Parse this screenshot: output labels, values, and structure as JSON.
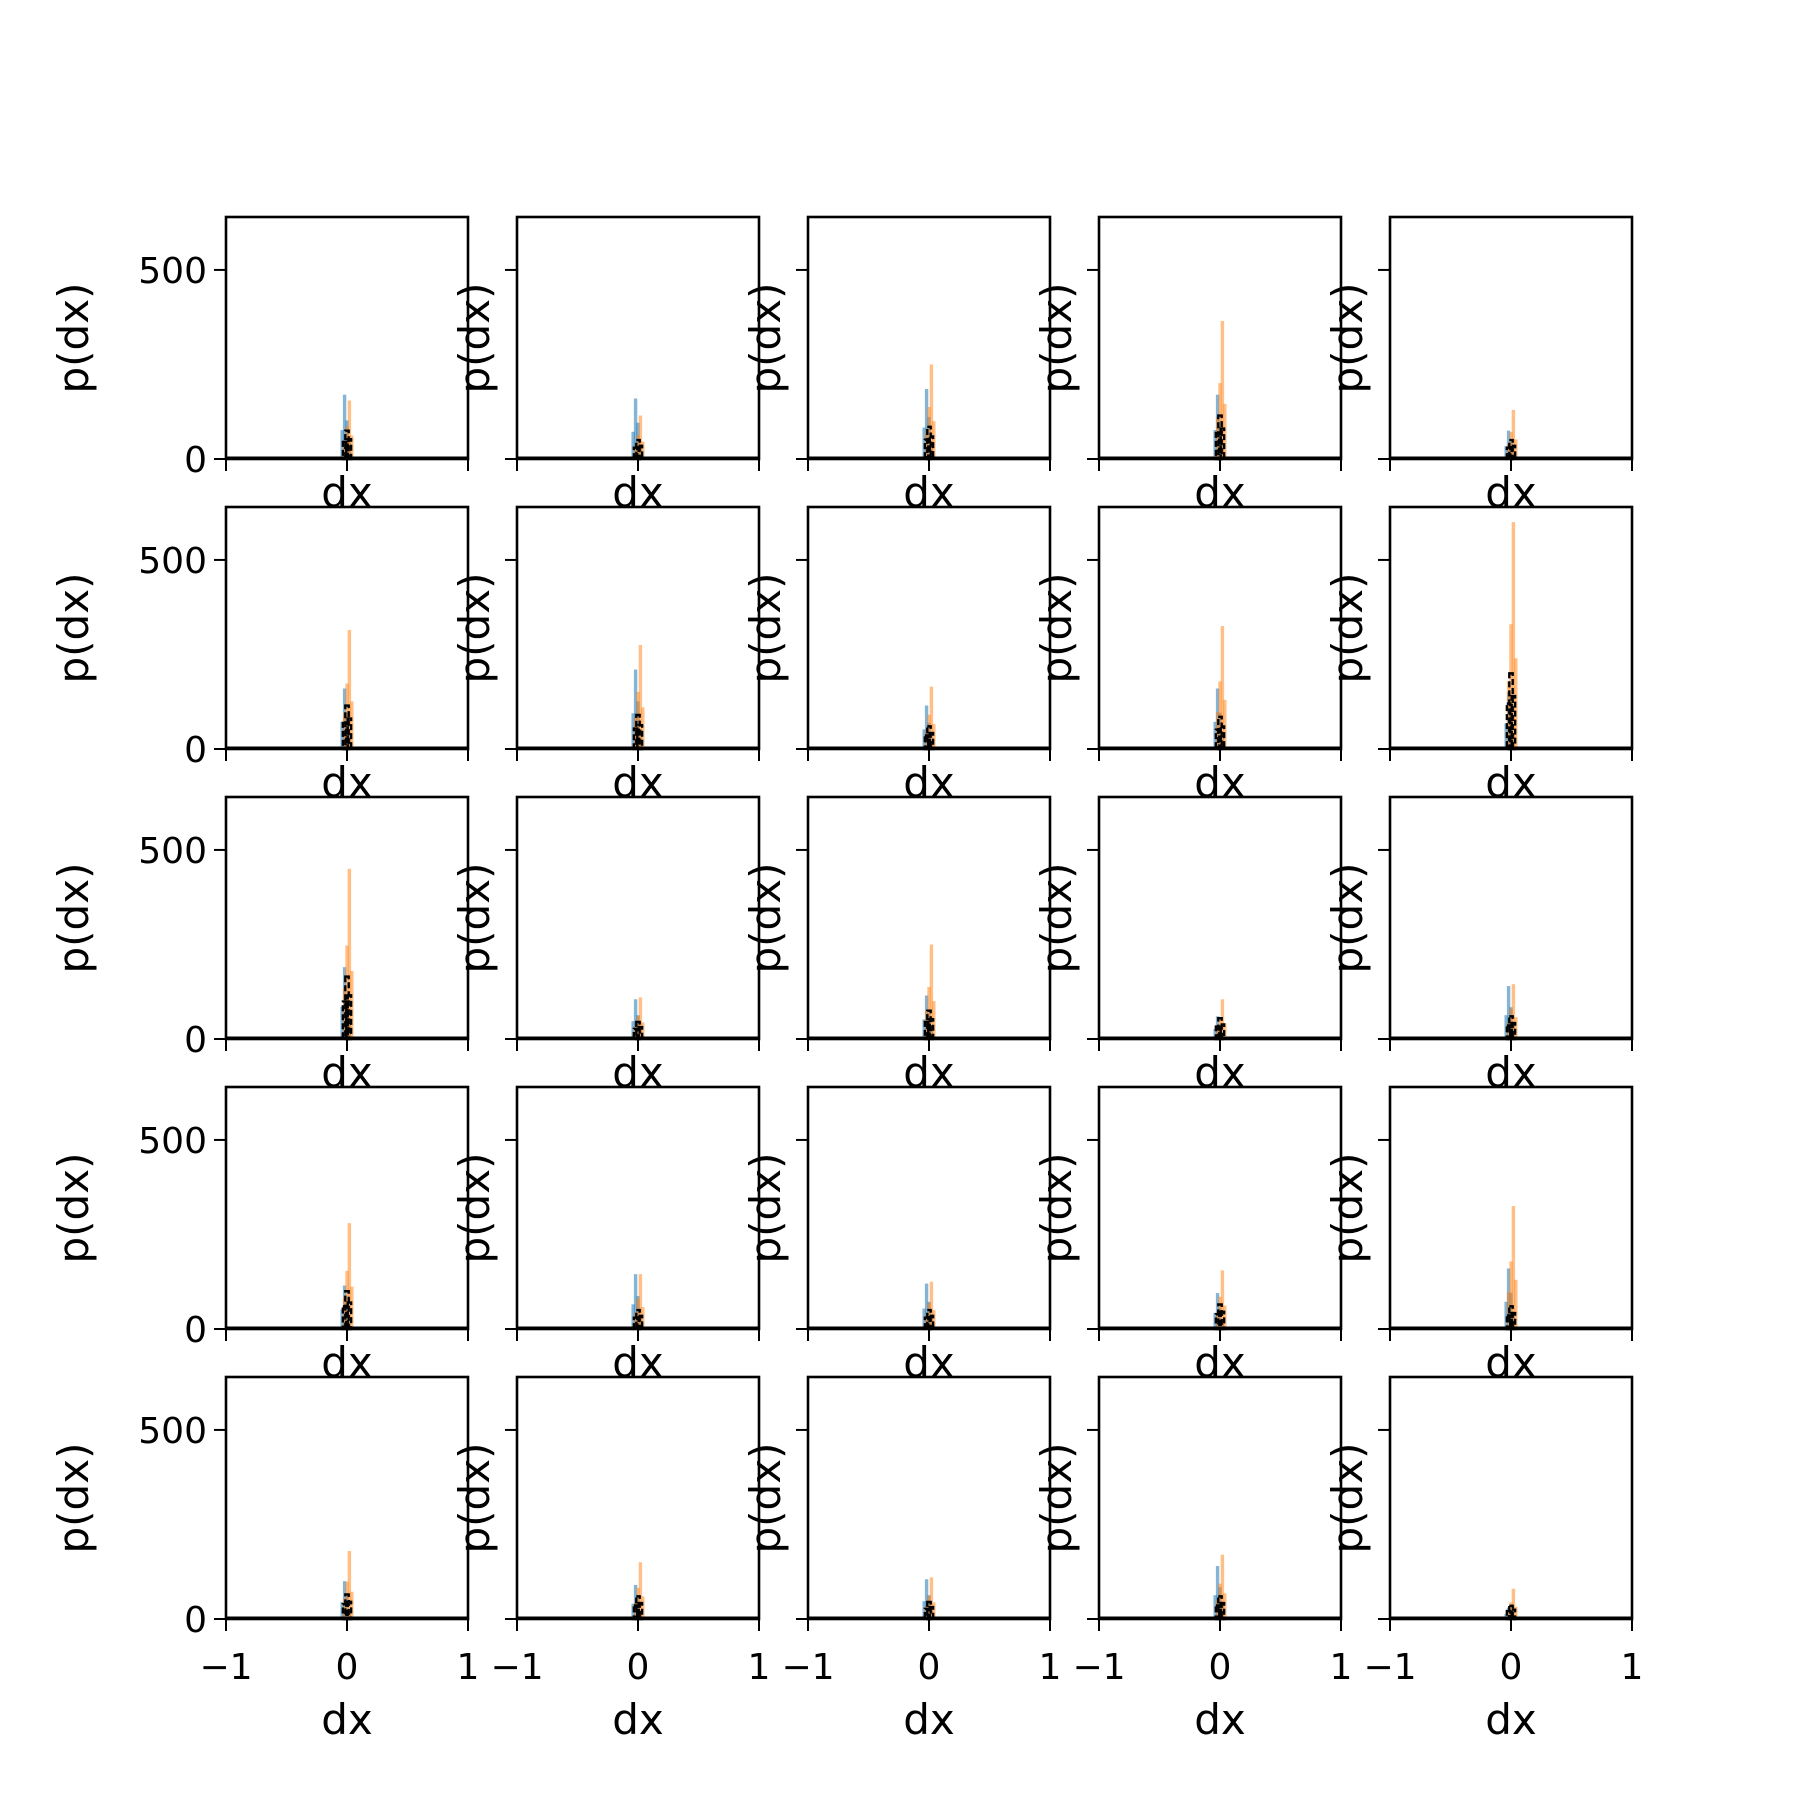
{
  "chart_data": {
    "type": "bar",
    "layout": "5x5 grid of histogram subplots",
    "sharey": true,
    "xlabel": "dx",
    "ylabel": "p(dx)",
    "xlim": [
      -1,
      1
    ],
    "ylim": [
      0,
      640
    ],
    "xticks": [
      -1,
      0,
      1
    ],
    "xtick_labels": [
      "−1",
      "0",
      "1"
    ],
    "yticks": [
      0,
      500
    ],
    "ytick_labels": [
      "0",
      "500"
    ],
    "colors": {
      "series_a": "#1f77b4",
      "series_b": "#ff7f0e",
      "series_c": "#000000"
    },
    "panels": [
      {
        "peaks": [
          170,
          155,
          75
        ]
      },
      {
        "peaks": [
          160,
          115,
          50
        ]
      },
      {
        "peaks": [
          185,
          250,
          85
        ]
      },
      {
        "peaks": [
          170,
          365,
          115
        ]
      },
      {
        "peaks": [
          75,
          130,
          50
        ]
      },
      {
        "peaks": [
          160,
          315,
          115
        ]
      },
      {
        "peaks": [
          210,
          275,
          90
        ]
      },
      {
        "peaks": [
          115,
          165,
          60
        ]
      },
      {
        "peaks": [
          160,
          325,
          85
        ]
      },
      {
        "peaks": [
          150,
          600,
          200
        ]
      },
      {
        "peaks": [
          190,
          450,
          165
        ]
      },
      {
        "peaks": [
          105,
          110,
          45
        ]
      },
      {
        "peaks": [
          115,
          250,
          75
        ]
      },
      {
        "peaks": [
          60,
          105,
          55
        ]
      },
      {
        "peaks": [
          140,
          145,
          60
        ]
      },
      {
        "peaks": [
          115,
          280,
          100
        ]
      },
      {
        "peaks": [
          145,
          145,
          50
        ]
      },
      {
        "peaks": [
          120,
          125,
          50
        ]
      },
      {
        "peaks": [
          95,
          155,
          65
        ]
      },
      {
        "peaks": [
          160,
          325,
          60
        ]
      },
      {
        "peaks": [
          100,
          180,
          65
        ]
      },
      {
        "peaks": [
          90,
          150,
          60
        ]
      },
      {
        "peaks": [
          105,
          110,
          45
        ]
      },
      {
        "peaks": [
          140,
          170,
          60
        ]
      },
      {
        "peaks": [
          30,
          80,
          35
        ]
      }
    ]
  }
}
